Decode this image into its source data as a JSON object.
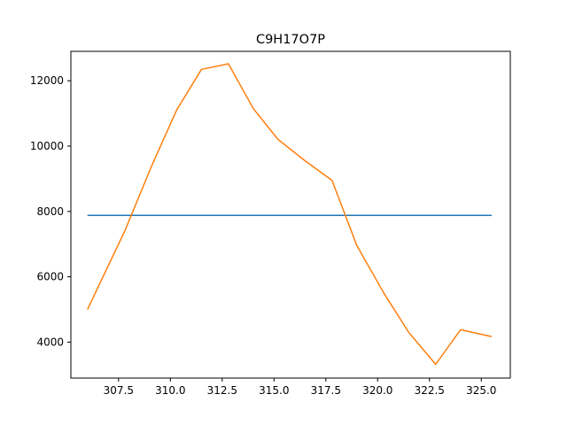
{
  "chart_data": {
    "type": "line",
    "title": "C9H17O7P",
    "xlabel": "",
    "ylabel": "",
    "xlim": [
      305.2,
      326.4
    ],
    "ylim": [
      2900,
      12900
    ],
    "xticks": [
      307.5,
      310.0,
      312.5,
      315.0,
      317.5,
      320.0,
      322.5,
      325.0
    ],
    "yticks": [
      4000,
      6000,
      8000,
      10000,
      12000
    ],
    "grid": false,
    "legend": "none",
    "series": [
      {
        "color": "#1f77b4",
        "x": [
          306.0,
          325.5
        ],
        "y": [
          7880,
          7880
        ]
      },
      {
        "color": "#ff7f0e",
        "x": [
          306.0,
          307.8,
          309.1,
          310.3,
          311.5,
          312.8,
          314.0,
          315.2,
          316.5,
          317.8,
          319.0,
          320.3,
          321.5,
          322.8,
          324.0,
          325.5
        ],
        "y": [
          5000,
          7400,
          9400,
          11100,
          12350,
          12520,
          11150,
          10200,
          9550,
          8950,
          6950,
          5500,
          4300,
          3320,
          4380,
          4170
        ]
      }
    ]
  }
}
